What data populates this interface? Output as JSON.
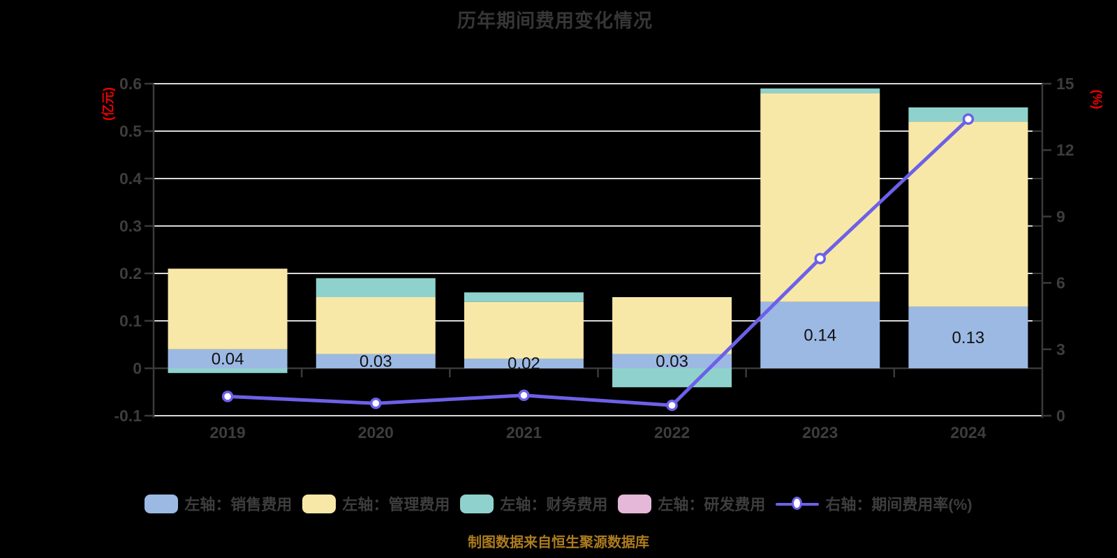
{
  "chart_data": {
    "type": "combo-stacked-bar-line",
    "title": "历年期间费用变化情况",
    "categories": [
      "2019",
      "2020",
      "2021",
      "2022",
      "2023",
      "2024"
    ],
    "left_axis": {
      "unit": "(亿元)",
      "min": -0.1,
      "max": 0.6,
      "ticks": [
        "0.6",
        "0.5",
        "0.4",
        "0.3",
        "0.2",
        "0.1",
        "0",
        "-0.1"
      ]
    },
    "right_axis": {
      "unit": "(%)",
      "min": 0,
      "max": 15,
      "ticks": [
        "15",
        "12",
        "9",
        "6",
        "3",
        "0"
      ]
    },
    "bar_series": [
      {
        "name": "左轴：销售费用",
        "color": "#9cb9e4",
        "values": [
          0.04,
          0.03,
          0.02,
          0.03,
          0.14,
          0.13
        ]
      },
      {
        "name": "左轴：管理费用",
        "color": "#f8e8a8",
        "values": [
          0.17,
          0.12,
          0.12,
          0.12,
          0.44,
          0.39
        ]
      },
      {
        "name": "左轴：财务费用",
        "color": "#8fd2cd",
        "values": [
          -0.01,
          0.04,
          0.02,
          -0.04,
          0.01,
          0.03
        ]
      },
      {
        "name": "左轴：研发费用",
        "color": "#e5b8d9",
        "values": [
          0,
          0,
          0,
          0,
          0,
          0
        ]
      }
    ],
    "line_series": {
      "name": "右轴：期间费用率(%)",
      "color": "#6d60e8",
      "marker_fill": "#ffffff",
      "values": [
        0.87,
        0.56,
        0.92,
        0.47,
        7.1,
        13.4
      ]
    },
    "bar_value_labels": [
      "0.04",
      "0.03",
      "0.02",
      "0.03",
      "0.14",
      "0.13"
    ],
    "grid": true,
    "legend_position": "bottom"
  },
  "source_note": "制图数据来自恒生聚源数据库",
  "colors": {
    "background": "#000000",
    "grid": "#d9d9d9",
    "axis": "#3a3a3a",
    "tick_text": "#3d3d3d",
    "bar_label": "#111111",
    "title": "#363636",
    "legend_text": "#3d3d3d",
    "axis_unit": "#ee0000",
    "source_note": "#ad7c1f"
  }
}
